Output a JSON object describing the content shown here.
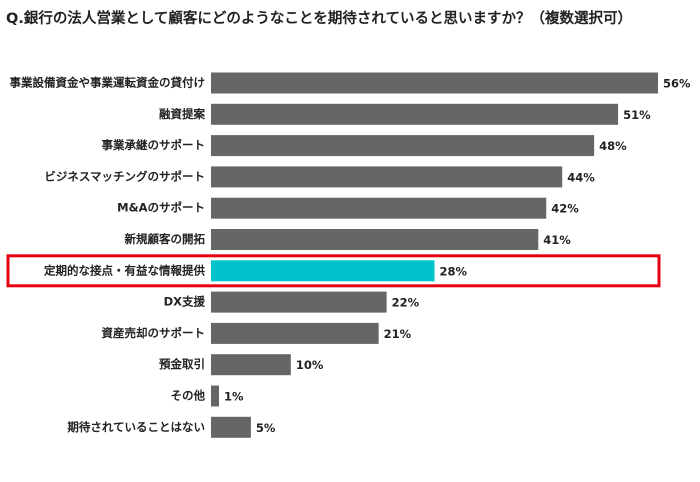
{
  "chart_data": {
    "type": "barh",
    "title": "Q.銀行の法人営業として顧客にどのようなことを期待されていると思いますか？（複数選択可）",
    "categories": [
      "事業設備資金や事業運転資金の貸付け",
      "融資提案",
      "事業承継のサポート",
      "ビジネスマッチングのサポート",
      "M&Aのサポート",
      "新規顧客の開拓",
      "定期的な接点・有益な情報提供",
      "DX支援",
      "資産売却のサポート",
      "預金取引",
      "その他",
      "期待されていることはない"
    ],
    "values": [
      56,
      51,
      48,
      44,
      42,
      41,
      28,
      22,
      21,
      10,
      1,
      5
    ],
    "value_labels": [
      "56%",
      "51%",
      "48%",
      "44%",
      "42%",
      "41%",
      "28%",
      "22%",
      "21%",
      "10%",
      "1%",
      "5%"
    ],
    "colors": [
      "#666666",
      "#666666",
      "#666666",
      "#666666",
      "#666666",
      "#666666",
      "#00c3cc",
      "#666666",
      "#666666",
      "#666666",
      "#666666",
      "#666666"
    ],
    "frame_color": "#e60012"
  }
}
